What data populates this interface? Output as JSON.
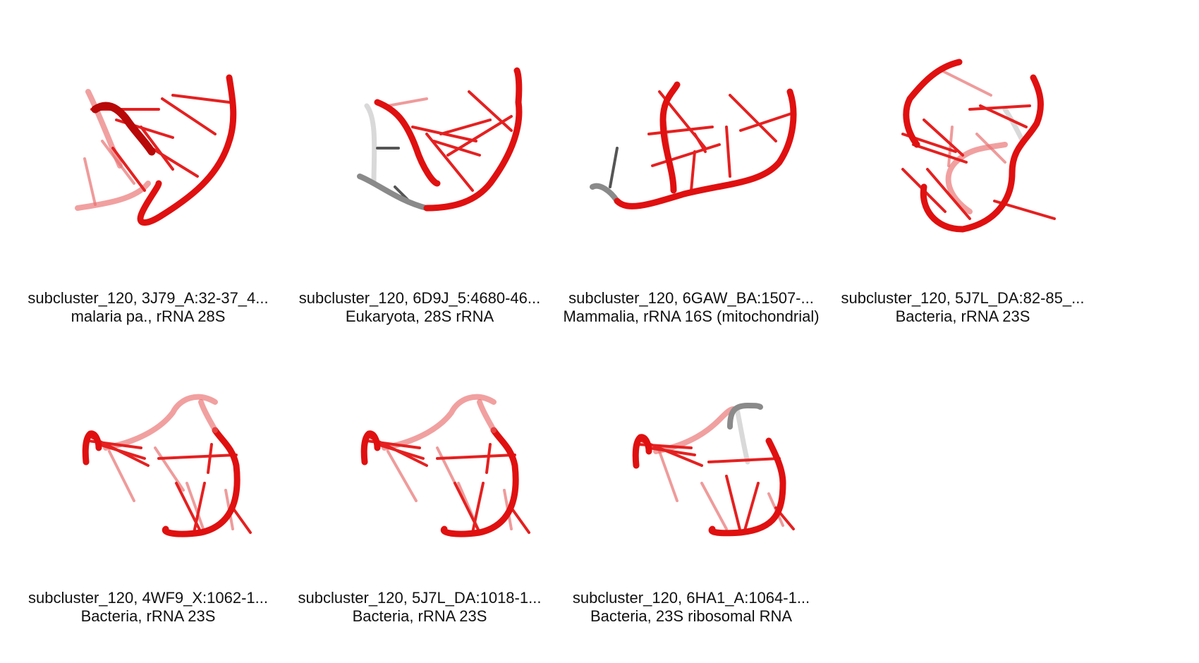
{
  "structures": [
    {
      "title": "subcluster_120, 3J79_A:32-37_4...",
      "subtitle": "malaria pa., rRNA 28S",
      "colors": {
        "backbone": "#e01010"
      }
    },
    {
      "title": "subcluster_120, 6D9J_5:4680-46...",
      "subtitle": "Eukaryota, 28S rRNA",
      "colors": {
        "backbone": "#e01010",
        "unmodeled": "#8a8a8a"
      }
    },
    {
      "title": "subcluster_120, 6GAW_BA:1507-...",
      "subtitle": "Mammalia, rRNA 16S (mitochondrial)",
      "colors": {
        "backbone": "#e01010",
        "unmodeled": "#8a8a8a"
      }
    },
    {
      "title": "subcluster_120, 5J7L_DA:82-85_...",
      "subtitle": "Bacteria, rRNA 23S",
      "colors": {
        "backbone": "#e01010"
      }
    },
    {
      "title": "subcluster_120, 4WF9_X:1062-1...",
      "subtitle": "Bacteria, rRNA 23S",
      "colors": {
        "backbone": "#e01010"
      }
    },
    {
      "title": "subcluster_120, 5J7L_DA:1018-1...",
      "subtitle": "Bacteria, rRNA 23S",
      "colors": {
        "backbone": "#e01010"
      }
    },
    {
      "title": "subcluster_120, 6HA1_A:1064-1...",
      "subtitle": "Bacteria, 23S ribosomal RNA",
      "colors": {
        "backbone": "#e01010",
        "unmodeled": "#8a8a8a"
      }
    }
  ]
}
